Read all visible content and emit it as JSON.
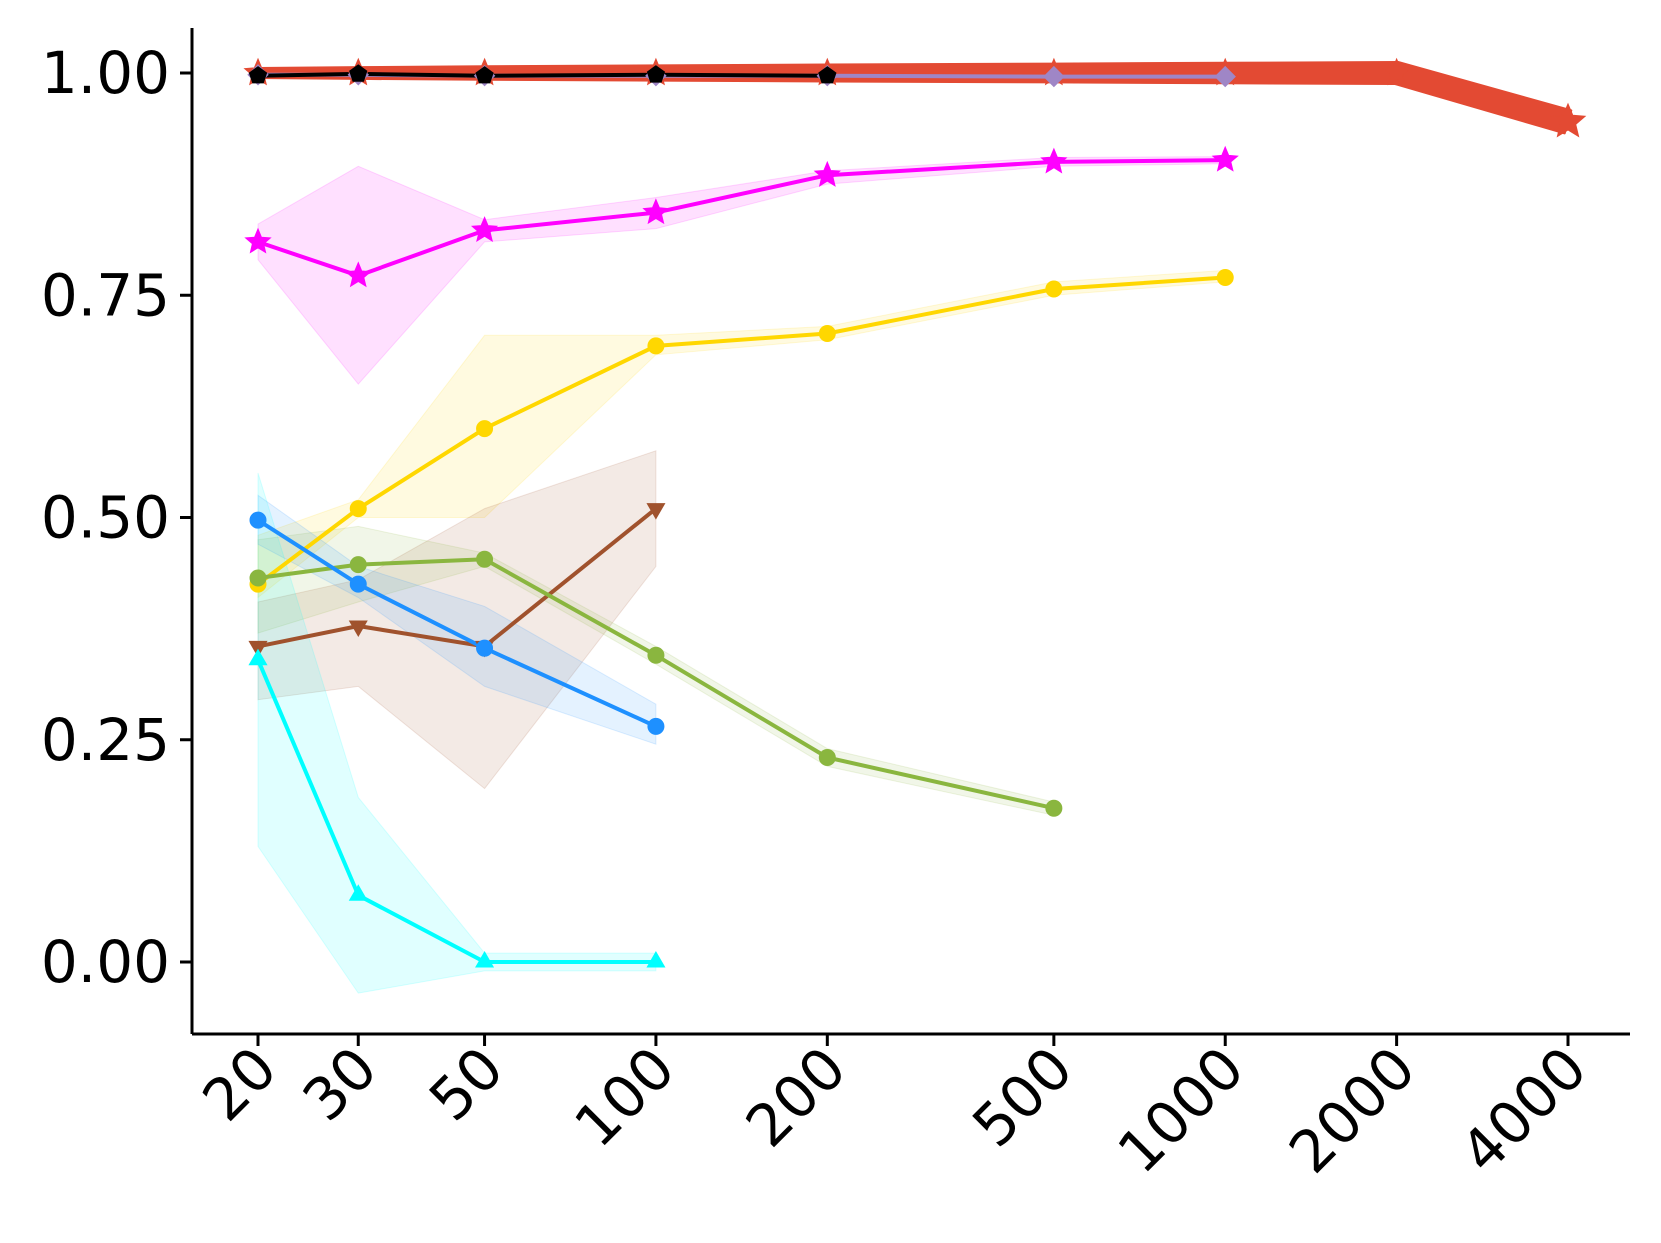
{
  "chart_data": {
    "type": "line",
    "title": "",
    "xlabel": "",
    "ylabel": "",
    "xscale": "log",
    "xticks": [
      20,
      30,
      50,
      100,
      200,
      500,
      1000,
      2000,
      4000
    ],
    "xtick_labels": [
      "20",
      "30",
      "50",
      "100",
      "200",
      "500",
      "1000",
      "2000",
      "4000"
    ],
    "xlim": [
      17,
      5200
    ],
    "yticks": [
      0.0,
      0.25,
      0.5,
      0.75,
      1.0
    ],
    "ytick_labels": [
      "0.00",
      "0.25",
      "0.50",
      "0.75",
      "1.00"
    ],
    "ylim": [
      -0.085,
      1.05
    ],
    "grid": false,
    "legend": "none",
    "series": [
      {
        "color": "#e34a33",
        "marker": "star",
        "line_width": "thick",
        "x": [
          20,
          30,
          50,
          100,
          200,
          500,
          1000,
          2000,
          4000
        ],
        "y": [
          1.0,
          1.0,
          1.0,
          1.0,
          1.0,
          1.0,
          1.0,
          1.0,
          0.945
        ]
      },
      {
        "color": "#9f86c6",
        "marker": "diamond",
        "x": [
          20,
          30,
          50,
          100,
          200,
          500,
          1000
        ],
        "y": [
          0.998,
          0.998,
          0.997,
          0.997,
          0.997,
          0.996,
          0.996
        ]
      },
      {
        "color": "#000000",
        "marker": "pentagon",
        "x": [
          20,
          30,
          50,
          100,
          200
        ],
        "y": [
          0.997,
          0.999,
          0.997,
          0.998,
          0.997
        ]
      },
      {
        "color": "#ff00ff",
        "marker": "star",
        "x": [
          20,
          30,
          50,
          100,
          200,
          500,
          1000
        ],
        "y": [
          0.81,
          0.772,
          0.823,
          0.843,
          0.885,
          0.9,
          0.902
        ],
        "band_lower": [
          0.79,
          0.65,
          0.81,
          0.825,
          0.875,
          0.895,
          0.898
        ],
        "band_upper": [
          0.83,
          0.895,
          0.835,
          0.86,
          0.89,
          0.905,
          0.906
        ]
      },
      {
        "color": "#ffd700",
        "marker": "circle",
        "x": [
          20,
          30,
          50,
          100,
          200,
          500,
          1000
        ],
        "y": [
          0.425,
          0.51,
          0.6,
          0.693,
          0.707,
          0.757,
          0.77
        ],
        "band_lower": [
          0.41,
          0.5,
          0.5,
          0.683,
          0.7,
          0.75,
          0.765
        ],
        "band_upper": [
          0.48,
          0.52,
          0.705,
          0.705,
          0.715,
          0.765,
          0.778
        ]
      },
      {
        "color": "#a0522d",
        "marker": "triangle-down",
        "x": [
          20,
          30,
          50,
          100
        ],
        "y": [
          0.355,
          0.378,
          0.355,
          0.51
        ],
        "band_lower": [
          0.295,
          0.31,
          0.195,
          0.445
        ],
        "band_upper": [
          0.405,
          0.43,
          0.51,
          0.575
        ]
      },
      {
        "color": "#8ab63f",
        "marker": "circle",
        "x": [
          20,
          30,
          50,
          100,
          200,
          500
        ],
        "y": [
          0.432,
          0.447,
          0.453,
          0.345,
          0.23,
          0.173
        ],
        "band_lower": [
          0.37,
          0.405,
          0.445,
          0.335,
          0.22,
          0.165
        ],
        "band_upper": [
          0.475,
          0.49,
          0.46,
          0.355,
          0.24,
          0.18
        ]
      },
      {
        "color": "#1e90ff",
        "marker": "circle",
        "x": [
          20,
          30,
          50,
          100
        ],
        "y": [
          0.497,
          0.425,
          0.353,
          0.265
        ],
        "band_lower": [
          0.47,
          0.41,
          0.31,
          0.245
        ],
        "band_upper": [
          0.525,
          0.445,
          0.4,
          0.29
        ]
      },
      {
        "color": "#00ffff",
        "marker": "triangle-up",
        "x": [
          20,
          30,
          50,
          100
        ],
        "y": [
          0.34,
          0.075,
          0.0,
          0.0
        ],
        "band_lower": [
          0.13,
          -0.035,
          -0.01,
          -0.01
        ],
        "band_upper": [
          0.55,
          0.185,
          0.01,
          0.01
        ]
      }
    ]
  }
}
